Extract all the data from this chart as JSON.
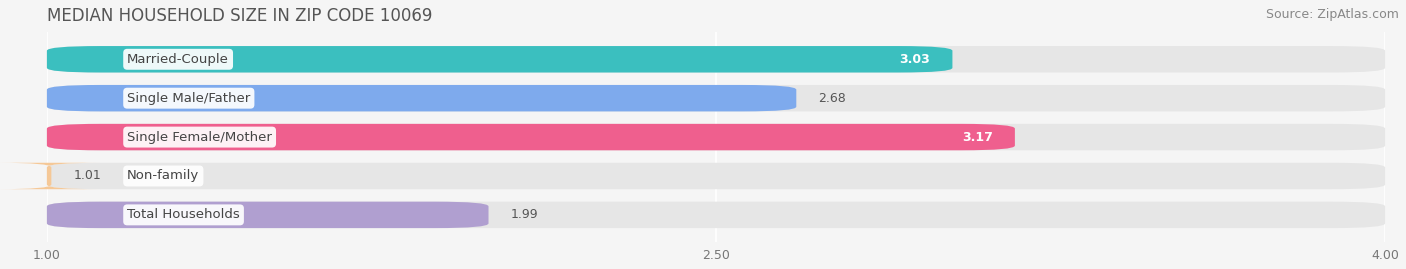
{
  "title": "MEDIAN HOUSEHOLD SIZE IN ZIP CODE 10069",
  "source": "Source: ZipAtlas.com",
  "categories": [
    "Married-Couple",
    "Single Male/Father",
    "Single Female/Mother",
    "Non-family",
    "Total Households"
  ],
  "values": [
    3.03,
    2.68,
    3.17,
    1.01,
    1.99
  ],
  "bar_colors": [
    "#3bbfbf",
    "#7eaaed",
    "#ef5f8e",
    "#f5c897",
    "#b09fd0"
  ],
  "value_inside": [
    true,
    false,
    true,
    false,
    false
  ],
  "value_colors_inside": [
    "#ffffff",
    "#555555",
    "#ffffff",
    "#555555",
    "#555555"
  ],
  "xlim_min": 1.0,
  "xlim_max": 4.0,
  "xticks": [
    1.0,
    2.5,
    4.0
  ],
  "background_color": "#f5f5f5",
  "bar_bg_color": "#e6e6e6",
  "title_fontsize": 12,
  "source_fontsize": 9,
  "label_fontsize": 9.5,
  "value_fontsize": 9
}
